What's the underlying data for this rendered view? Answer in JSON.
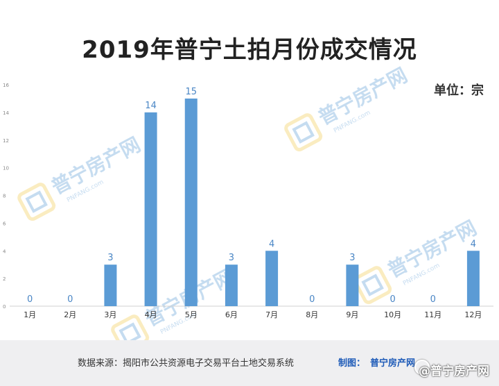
{
  "header": {
    "title": "2019年普宁土拍月份成交情况",
    "unit": "单位：宗"
  },
  "chart_data": {
    "type": "bar",
    "categories": [
      "1月",
      "2月",
      "3月",
      "4月",
      "5月",
      "6月",
      "7月",
      "8月",
      "9月",
      "10月",
      "11月",
      "12月"
    ],
    "values": [
      0,
      0,
      3,
      14,
      15,
      3,
      4,
      0,
      3,
      0,
      0,
      4
    ],
    "ylim": [
      0,
      16
    ],
    "yticks": [
      0,
      2,
      4,
      6,
      8,
      10,
      12,
      14,
      16
    ],
    "bar_color": "#5b9bd5",
    "label_color": "#4a86c5",
    "grid": false,
    "legend": "none"
  },
  "footer": {
    "source": "数据来源：揭阳市公共资源电子交易平台土地交易系统",
    "credit_label": "制图：",
    "credit": "普宁房产网",
    "watermark": "@普宁房产网"
  },
  "watermark": {
    "brand": "普宁房产网",
    "latin": "PNFANG.com",
    "icon": "house-icon"
  }
}
